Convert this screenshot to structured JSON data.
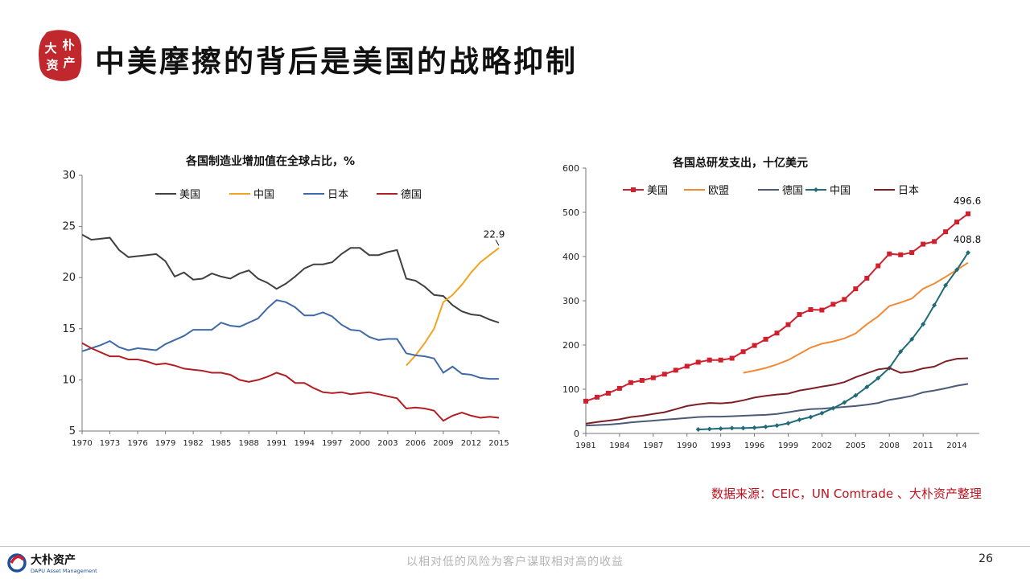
{
  "brand": {
    "seal_text": [
      "大",
      "朴",
      "资",
      "产"
    ],
    "logo_name": "大朴资产",
    "logo_sub": "DAPU Asset Management",
    "seal_color": "#c0282d"
  },
  "header": {
    "title": "中美摩擦的背后是美国的战略抑制"
  },
  "footer": {
    "source": "数据来源：CEIC，UN Comtrade 、大朴资产整理",
    "slogan": "以相对低的风险为客户谋取相对高的收益",
    "page_number": "26"
  },
  "chart_data": [
    {
      "type": "line",
      "title": "各国制造业增加值在全球占比，%",
      "xlabel": "",
      "ylabel": "",
      "xlim": [
        1970,
        2015
      ],
      "ylim": [
        5,
        30
      ],
      "yticks": [
        5,
        10,
        15,
        20,
        25,
        30
      ],
      "xticks": [
        1970,
        1973,
        1976,
        1979,
        1982,
        1985,
        1988,
        1991,
        1994,
        1997,
        2000,
        2003,
        2006,
        2009,
        2012,
        2015
      ],
      "grid": false,
      "legend": "top",
      "annotations": [
        {
          "text": "22.9",
          "x": 2015,
          "y": 22.9
        }
      ],
      "series": [
        {
          "name": "美国",
          "color": "#404040",
          "x": [
            1970,
            1971,
            1972,
            1973,
            1974,
            1975,
            1976,
            1977,
            1978,
            1979,
            1980,
            1981,
            1982,
            1983,
            1984,
            1985,
            1986,
            1987,
            1988,
            1989,
            1990,
            1991,
            1992,
            1993,
            1994,
            1995,
            1996,
            1997,
            1998,
            1999,
            2000,
            2001,
            2002,
            2003,
            2004,
            2005,
            2006,
            2007,
            2008,
            2009,
            2010,
            2011,
            2012,
            2013,
            2014,
            2015
          ],
          "y": [
            24.2,
            23.7,
            23.8,
            23.9,
            22.7,
            22.0,
            22.1,
            22.2,
            22.3,
            21.6,
            20.1,
            20.5,
            19.8,
            19.9,
            20.4,
            20.1,
            19.9,
            20.4,
            20.7,
            19.9,
            19.5,
            18.9,
            19.4,
            20.1,
            20.9,
            21.3,
            21.3,
            21.5,
            22.3,
            22.9,
            22.9,
            22.2,
            22.2,
            22.5,
            22.7,
            19.9,
            19.7,
            19.1,
            18.3,
            18.2,
            17.3,
            16.7,
            16.4,
            16.3,
            15.9,
            15.6
          ]
        },
        {
          "name": "中国",
          "color": "#f0a420",
          "x": [
            2005,
            2006,
            2007,
            2008,
            2009,
            2010,
            2011,
            2012,
            2013,
            2014,
            2015
          ],
          "y": [
            11.4,
            12.4,
            13.6,
            15.0,
            17.6,
            18.3,
            19.3,
            20.5,
            21.5,
            22.2,
            22.9
          ]
        },
        {
          "name": "日本",
          "color": "#3e6aa8",
          "x": [
            1970,
            1971,
            1972,
            1973,
            1974,
            1975,
            1976,
            1977,
            1978,
            1979,
            1980,
            1981,
            1982,
            1983,
            1984,
            1985,
            1986,
            1987,
            1988,
            1989,
            1990,
            1991,
            1992,
            1993,
            1994,
            1995,
            1996,
            1997,
            1998,
            1999,
            2000,
            2001,
            2002,
            2003,
            2004,
            2005,
            2006,
            2007,
            2008,
            2009,
            2010,
            2011,
            2012,
            2013,
            2014,
            2015
          ],
          "y": [
            12.8,
            13.1,
            13.4,
            13.8,
            13.2,
            12.9,
            13.1,
            13.0,
            12.9,
            13.5,
            13.9,
            14.3,
            14.9,
            14.9,
            14.9,
            15.6,
            15.3,
            15.2,
            15.6,
            16.0,
            17.0,
            17.8,
            17.6,
            17.1,
            16.3,
            16.3,
            16.6,
            16.2,
            15.4,
            14.9,
            14.8,
            14.2,
            13.9,
            14.0,
            14.0,
            12.6,
            12.4,
            12.3,
            12.1,
            10.7,
            11.3,
            10.6,
            10.5,
            10.2,
            10.1,
            10.1
          ]
        },
        {
          "name": "德国",
          "color": "#b11f24",
          "x": [
            1970,
            1971,
            1972,
            1973,
            1974,
            1975,
            1976,
            1977,
            1978,
            1979,
            1980,
            1981,
            1982,
            1983,
            1984,
            1985,
            1986,
            1987,
            1988,
            1989,
            1990,
            1991,
            1992,
            1993,
            1994,
            1995,
            1996,
            1997,
            1998,
            1999,
            2000,
            2001,
            2002,
            2003,
            2004,
            2005,
            2006,
            2007,
            2008,
            2009,
            2010,
            2011,
            2012,
            2013,
            2014,
            2015
          ],
          "y": [
            13.6,
            13.1,
            12.7,
            12.3,
            12.3,
            12.0,
            12.0,
            11.8,
            11.5,
            11.6,
            11.4,
            11.1,
            11.0,
            10.9,
            10.7,
            10.7,
            10.5,
            10.0,
            9.8,
            10.0,
            10.3,
            10.7,
            10.4,
            9.7,
            9.7,
            9.2,
            8.8,
            8.7,
            8.8,
            8.6,
            8.7,
            8.8,
            8.6,
            8.4,
            8.2,
            7.2,
            7.3,
            7.2,
            7.0,
            6.0,
            6.5,
            6.8,
            6.5,
            6.3,
            6.4,
            6.3
          ]
        }
      ]
    },
    {
      "type": "line",
      "title": "各国总研发支出，十亿美元",
      "xlabel": "",
      "ylabel": "",
      "xlim": [
        1981,
        2016
      ],
      "ylim": [
        0,
        600
      ],
      "yticks": [
        0,
        100,
        200,
        300,
        400,
        500,
        600
      ],
      "xticks": [
        1981,
        1984,
        1987,
        1990,
        1993,
        1996,
        1999,
        2002,
        2005,
        2008,
        2011,
        2014
      ],
      "grid": false,
      "legend": "top",
      "annotations": [
        {
          "text": "496.6",
          "x": 2015,
          "y": 496.6
        },
        {
          "text": "408.8",
          "x": 2015,
          "y": 408.8
        }
      ],
      "series": [
        {
          "name": "美国",
          "color": "#d0202e",
          "marker": "square",
          "x": [
            1981,
            1982,
            1983,
            1984,
            1985,
            1986,
            1987,
            1988,
            1989,
            1990,
            1991,
            1992,
            1993,
            1994,
            1995,
            1996,
            1997,
            1998,
            1999,
            2000,
            2001,
            2002,
            2003,
            2004,
            2005,
            2006,
            2007,
            2008,
            2009,
            2010,
            2011,
            2012,
            2013,
            2014,
            2015
          ],
          "y": [
            73,
            82,
            91,
            102,
            115,
            120,
            126,
            134,
            143,
            152,
            161,
            166,
            166,
            170,
            185,
            199,
            213,
            227,
            246,
            269,
            280,
            279,
            292,
            303,
            327,
            351,
            379,
            406,
            404,
            409,
            428,
            434,
            456,
            478,
            496.6
          ]
        },
        {
          "name": "欧盟",
          "color": "#f28a35",
          "marker": "none",
          "x": [
            1995,
            1996,
            1997,
            1998,
            1999,
            2000,
            2001,
            2002,
            2003,
            2004,
            2005,
            2006,
            2007,
            2008,
            2009,
            2010,
            2011,
            2012,
            2013,
            2014,
            2015
          ],
          "y": [
            137,
            142,
            148,
            156,
            166,
            180,
            194,
            203,
            208,
            215,
            226,
            247,
            265,
            288,
            296,
            305,
            327,
            339,
            354,
            370,
            386
          ]
        },
        {
          "name": "德国",
          "color": "#4a5a78",
          "marker": "none",
          "x": [
            1981,
            1982,
            1983,
            1984,
            1985,
            1986,
            1987,
            1988,
            1989,
            1990,
            1991,
            1992,
            1993,
            1994,
            1995,
            1996,
            1997,
            1998,
            1999,
            2000,
            2001,
            2002,
            2003,
            2004,
            2005,
            2006,
            2007,
            2008,
            2009,
            2010,
            2011,
            2012,
            2013,
            2014,
            2015
          ],
          "y": [
            18,
            19,
            20,
            22,
            25,
            27,
            29,
            31,
            33,
            35,
            37,
            38,
            38,
            39,
            40,
            41,
            42,
            44,
            48,
            52,
            55,
            56,
            58,
            60,
            62,
            65,
            69,
            76,
            80,
            85,
            93,
            97,
            102,
            108,
            112
          ]
        },
        {
          "name": "中国",
          "color": "#1f6b78",
          "marker": "diamond",
          "x": [
            1991,
            1992,
            1993,
            1994,
            1995,
            1996,
            1997,
            1998,
            1999,
            2000,
            2001,
            2002,
            2003,
            2004,
            2005,
            2006,
            2007,
            2008,
            2009,
            2010,
            2011,
            2012,
            2013,
            2014,
            2015
          ],
          "y": [
            9,
            10,
            11,
            12,
            12,
            13,
            15,
            18,
            23,
            31,
            37,
            46,
            57,
            70,
            86,
            105,
            125,
            148,
            185,
            213,
            247,
            290,
            335,
            370,
            408.8
          ]
        },
        {
          "name": "日本",
          "color": "#7e1f26",
          "marker": "none",
          "x": [
            1981,
            1982,
            1983,
            1984,
            1985,
            1986,
            1987,
            1988,
            1989,
            1990,
            1991,
            1992,
            1993,
            1994,
            1995,
            1996,
            1997,
            1998,
            1999,
            2000,
            2001,
            2002,
            2003,
            2004,
            2005,
            2006,
            2007,
            2008,
            2009,
            2010,
            2011,
            2012,
            2013,
            2014,
            2015
          ],
          "y": [
            22,
            26,
            29,
            32,
            37,
            40,
            44,
            48,
            55,
            62,
            66,
            69,
            68,
            70,
            75,
            81,
            85,
            88,
            90,
            97,
            101,
            106,
            110,
            116,
            127,
            136,
            145,
            148,
            137,
            140,
            147,
            151,
            163,
            169,
            170
          ]
        }
      ]
    }
  ]
}
